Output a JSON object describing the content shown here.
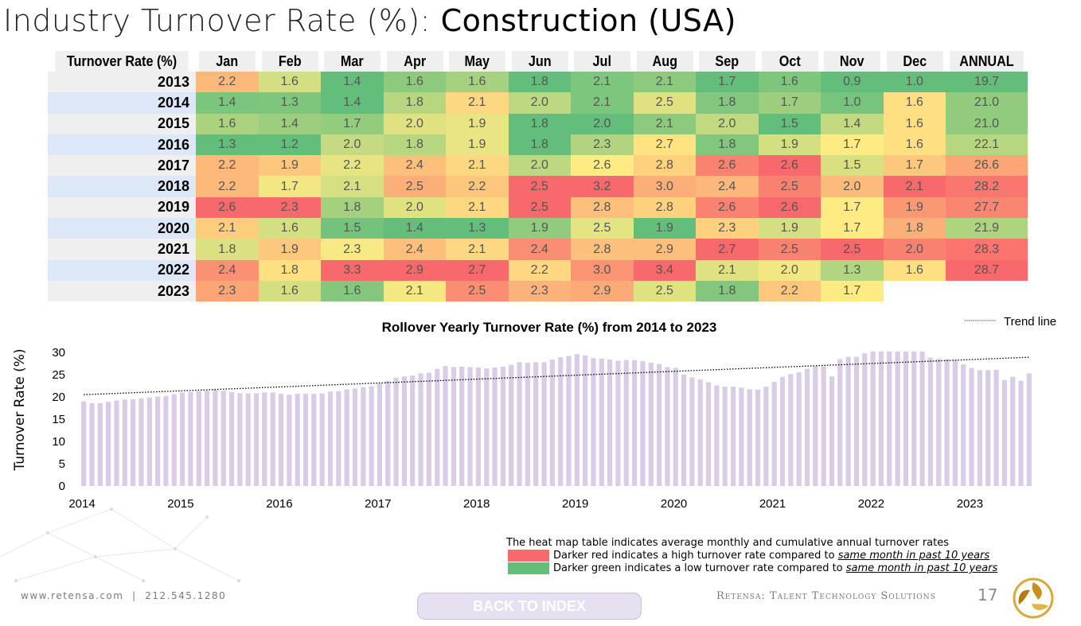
{
  "title": {
    "light": "Industry Turnover Rate (%): ",
    "bold": "Construction (USA)"
  },
  "heatmap": {
    "header": [
      "Turnover Rate (%)",
      "Jan",
      "Feb",
      "Mar",
      "Apr",
      "May",
      "Jun",
      "Jul",
      "Aug",
      "Sep",
      "Oct",
      "Nov",
      "Dec",
      "ANNUAL"
    ],
    "rows": [
      {
        "year": "2013",
        "values": [
          "2.2",
          "1.6",
          "1.4",
          "1.6",
          "1.6",
          "1.8",
          "2.1",
          "2.1",
          "1.7",
          "1.6",
          "0.9",
          "1.0",
          "19.7"
        ]
      },
      {
        "year": "2014",
        "values": [
          "1.4",
          "1.3",
          "1.4",
          "1.8",
          "2.1",
          "2.0",
          "2.1",
          "2.5",
          "1.8",
          "1.7",
          "1.0",
          "1.6",
          "21.0"
        ]
      },
      {
        "year": "2015",
        "values": [
          "1.6",
          "1.4",
          "1.7",
          "2.0",
          "1.9",
          "1.8",
          "2.0",
          "2.1",
          "2.0",
          "1.5",
          "1.4",
          "1.6",
          "21.0"
        ]
      },
      {
        "year": "2016",
        "values": [
          "1.3",
          "1.2",
          "2.0",
          "1.8",
          "1.9",
          "1.8",
          "2.3",
          "2.7",
          "1.8",
          "1.9",
          "1.7",
          "1.6",
          "22.1"
        ]
      },
      {
        "year": "2017",
        "values": [
          "2.2",
          "1.9",
          "2.2",
          "2.4",
          "2.1",
          "2.0",
          "2.6",
          "2.8",
          "2.6",
          "2.6",
          "1.5",
          "1.7",
          "26.6"
        ]
      },
      {
        "year": "2018",
        "values": [
          "2.2",
          "1.7",
          "2.1",
          "2.5",
          "2.2",
          "2.5",
          "3.2",
          "3.0",
          "2.4",
          "2.5",
          "2.0",
          "2.1",
          "28.2"
        ]
      },
      {
        "year": "2019",
        "values": [
          "2.6",
          "2.3",
          "1.8",
          "2.0",
          "2.1",
          "2.5",
          "2.8",
          "2.8",
          "2.6",
          "2.6",
          "1.7",
          "1.9",
          "27.7"
        ]
      },
      {
        "year": "2020",
        "values": [
          "2.1",
          "1.6",
          "1.5",
          "1.4",
          "1.3",
          "1.9",
          "2.5",
          "1.9",
          "2.3",
          "1.9",
          "1.7",
          "1.8",
          "21.9"
        ]
      },
      {
        "year": "2021",
        "values": [
          "1.8",
          "1.9",
          "2.3",
          "2.4",
          "2.1",
          "2.4",
          "2.8",
          "2.9",
          "2.7",
          "2.5",
          "2.5",
          "2.0",
          "28.3"
        ]
      },
      {
        "year": "2022",
        "values": [
          "2.4",
          "1.8",
          "3.3",
          "2.9",
          "2.7",
          "2.2",
          "3.0",
          "3.4",
          "2.1",
          "2.0",
          "1.3",
          "1.6",
          "28.7"
        ]
      },
      {
        "year": "2023",
        "values": [
          "2.3",
          "1.6",
          "1.6",
          "2.1",
          "2.5",
          "2.3",
          "2.9",
          "2.5",
          "1.8",
          "2.2",
          "1.7"
        ]
      }
    ],
    "colors": {
      "green": "#63be7b",
      "yellow": "#ffeb84",
      "red": "#f8696b"
    }
  },
  "chart_data": {
    "type": "bar",
    "title": "Rollover Yearly Turnover Rate (%) from 2014 to 2023",
    "xlabel": "",
    "ylabel": "Turnover Rate (%)",
    "ylim": [
      0,
      30
    ],
    "yticks": [
      "0",
      "5",
      "10",
      "15",
      "20",
      "25",
      "30"
    ],
    "xticks": [
      "2014",
      "2015",
      "2016",
      "2017",
      "2018",
      "2019",
      "2020",
      "2021",
      "2022",
      "2023"
    ],
    "bar_color": "#d9cce6",
    "series": [
      {
        "values": [
          19.0,
          18.6,
          18.6,
          18.9,
          19.2,
          19.4,
          19.5,
          19.7,
          19.9,
          20.1,
          20.2,
          20.6,
          21.0,
          21.1,
          21.3,
          21.4,
          21.6,
          21.4,
          21.1,
          20.8,
          20.8,
          20.8,
          21.0,
          21.0,
          20.7,
          20.5,
          20.7,
          20.7,
          20.7,
          20.8,
          21.2,
          21.3,
          21.7,
          21.9,
          22.2,
          22.4,
          23.0,
          23.6,
          24.3,
          24.6,
          24.8,
          25.3,
          25.4,
          26.3,
          26.9,
          26.7,
          26.8,
          26.7,
          26.6,
          26.4,
          26.6,
          26.8,
          27.2,
          27.8,
          27.7,
          27.8,
          27.8,
          28.4,
          28.9,
          29.2,
          29.6,
          29.3,
          28.7,
          28.6,
          28.4,
          28.1,
          28.3,
          28.3,
          28.0,
          27.7,
          27.4,
          26.7,
          26.5,
          25.0,
          24.4,
          23.9,
          23.3,
          22.6,
          22.3,
          22.3,
          22.1,
          21.7,
          21.6,
          22.3,
          23.4,
          24.5,
          25.1,
          25.5,
          26.3,
          26.9,
          26.9,
          24.6,
          28.5,
          29.0,
          29.0,
          29.8,
          30.2,
          30.2,
          30.2,
          30.2,
          30.2,
          30.2,
          30.2,
          28.8,
          28.6,
          28.4,
          28.3,
          27.3,
          26.5,
          26.0,
          26.0,
          26.1,
          23.8,
          24.5,
          23.6,
          25.3
        ]
      }
    ],
    "trend": {
      "start": 20.5,
      "end": 28.9
    },
    "trend_label": "Trend line"
  },
  "legend": {
    "intro": "The heat map table indicates average monthly and cumulative annual turnover rates",
    "red_text": "Darker red indicates a high turnover rate compared to ",
    "green_text": "Darker green indicates a low turnover rate compared to ",
    "emphasis": "same month in past 10 years"
  },
  "footer": {
    "website": "www.retensa.com",
    "phone": "212.545.1280",
    "separator": "|",
    "company": "Retensa: Talent Technology Solutions",
    "page": "17",
    "back_button": "BACK TO INDEX"
  }
}
